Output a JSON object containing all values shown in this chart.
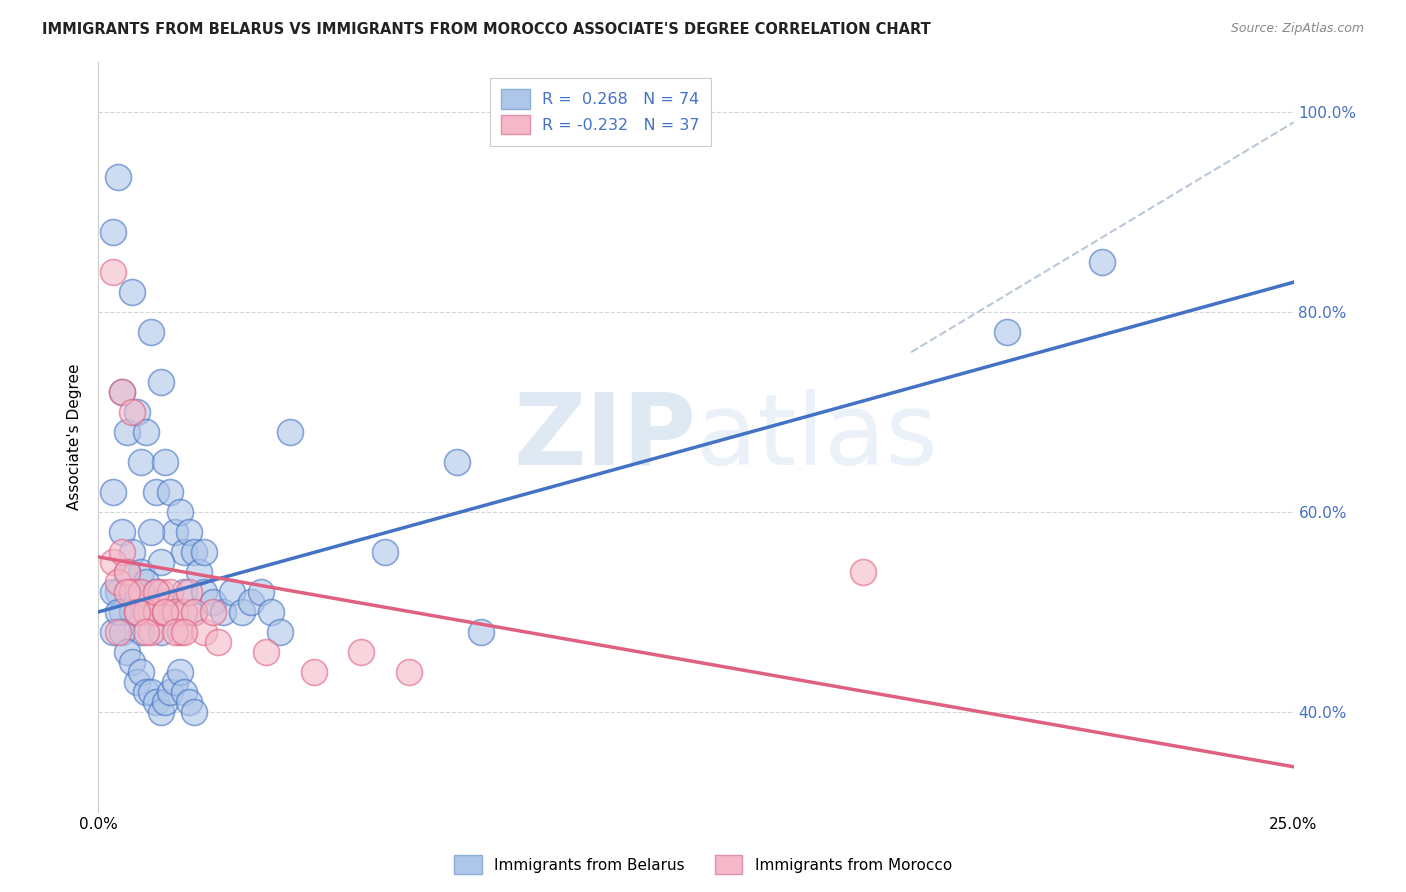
{
  "title": "IMMIGRANTS FROM BELARUS VS IMMIGRANTS FROM MOROCCO ASSOCIATE'S DEGREE CORRELATION CHART",
  "source_text": "Source: ZipAtlas.com",
  "ylabel": "Associate's Degree",
  "xlim": [
    0.0,
    0.25
  ],
  "ylim": [
    0.3,
    1.05
  ],
  "x_ticks": [
    0.0,
    0.25
  ],
  "x_tick_labels": [
    "0.0%",
    "25.0%"
  ],
  "y_ticks": [
    0.4,
    0.6,
    0.8,
    1.0
  ],
  "y_tick_labels": [
    "40.0%",
    "60.0%",
    "80.0%",
    "100.0%"
  ],
  "legend_r1": "R =  0.268",
  "legend_n1": "N = 74",
  "legend_r2": "R = -0.232",
  "legend_n2": "N = 37",
  "color_belarus": "#aec6e8",
  "color_morocco": "#f4b8c8",
  "line_color_belarus": "#4472c4",
  "line_color_morocco": "#e06080",
  "line_color_dashed": "#b8c8d8",
  "watermark_zip": "ZIP",
  "watermark_atlas": "atlas",
  "bel_line_x0": 0.0,
  "bel_line_y0": 0.5,
  "bel_line_x1": 0.25,
  "bel_line_y1": 0.83,
  "mor_line_x0": 0.0,
  "mor_line_y0": 0.555,
  "mor_line_x1": 0.25,
  "mor_line_y1": 0.345,
  "dash_line_x0": 0.17,
  "dash_line_y0": 0.76,
  "dash_line_x1": 0.25,
  "dash_line_y1": 0.99,
  "belarus_x": [
    0.004,
    0.007,
    0.011,
    0.013,
    0.003,
    0.005,
    0.006,
    0.008,
    0.009,
    0.01,
    0.012,
    0.014,
    0.015,
    0.016,
    0.017,
    0.018,
    0.019,
    0.02,
    0.021,
    0.022,
    0.003,
    0.005,
    0.007,
    0.009,
    0.011,
    0.013,
    0.004,
    0.006,
    0.008,
    0.01,
    0.012,
    0.014,
    0.016,
    0.018,
    0.02,
    0.022,
    0.024,
    0.026,
    0.028,
    0.03,
    0.032,
    0.034,
    0.036,
    0.038,
    0.003,
    0.005,
    0.007,
    0.009,
    0.011,
    0.013,
    0.003,
    0.004,
    0.005,
    0.006,
    0.007,
    0.008,
    0.009,
    0.01,
    0.011,
    0.012,
    0.013,
    0.014,
    0.015,
    0.016,
    0.017,
    0.018,
    0.019,
    0.02,
    0.04,
    0.06,
    0.075,
    0.08,
    0.19,
    0.21
  ],
  "belarus_y": [
    0.935,
    0.82,
    0.78,
    0.73,
    0.88,
    0.72,
    0.68,
    0.7,
    0.65,
    0.68,
    0.62,
    0.65,
    0.62,
    0.58,
    0.6,
    0.56,
    0.58,
    0.56,
    0.54,
    0.56,
    0.62,
    0.58,
    0.56,
    0.54,
    0.58,
    0.55,
    0.52,
    0.54,
    0.52,
    0.53,
    0.52,
    0.51,
    0.5,
    0.52,
    0.5,
    0.52,
    0.51,
    0.5,
    0.52,
    0.5,
    0.51,
    0.52,
    0.5,
    0.48,
    0.52,
    0.5,
    0.5,
    0.48,
    0.5,
    0.48,
    0.48,
    0.5,
    0.48,
    0.46,
    0.45,
    0.43,
    0.44,
    0.42,
    0.42,
    0.41,
    0.4,
    0.41,
    0.42,
    0.43,
    0.44,
    0.42,
    0.41,
    0.4,
    0.68,
    0.56,
    0.65,
    0.48,
    0.78,
    0.85
  ],
  "morocco_x": [
    0.003,
    0.004,
    0.005,
    0.006,
    0.007,
    0.008,
    0.009,
    0.01,
    0.011,
    0.012,
    0.013,
    0.014,
    0.015,
    0.016,
    0.017,
    0.018,
    0.019,
    0.02,
    0.022,
    0.024,
    0.004,
    0.006,
    0.008,
    0.01,
    0.012,
    0.014,
    0.016,
    0.018,
    0.025,
    0.035,
    0.045,
    0.055,
    0.065,
    0.003,
    0.005,
    0.007,
    0.16
  ],
  "morocco_y": [
    0.55,
    0.53,
    0.56,
    0.54,
    0.52,
    0.5,
    0.52,
    0.5,
    0.48,
    0.5,
    0.52,
    0.5,
    0.52,
    0.5,
    0.48,
    0.5,
    0.52,
    0.5,
    0.48,
    0.5,
    0.48,
    0.52,
    0.5,
    0.48,
    0.52,
    0.5,
    0.48,
    0.48,
    0.47,
    0.46,
    0.44,
    0.46,
    0.44,
    0.84,
    0.72,
    0.7,
    0.54
  ]
}
